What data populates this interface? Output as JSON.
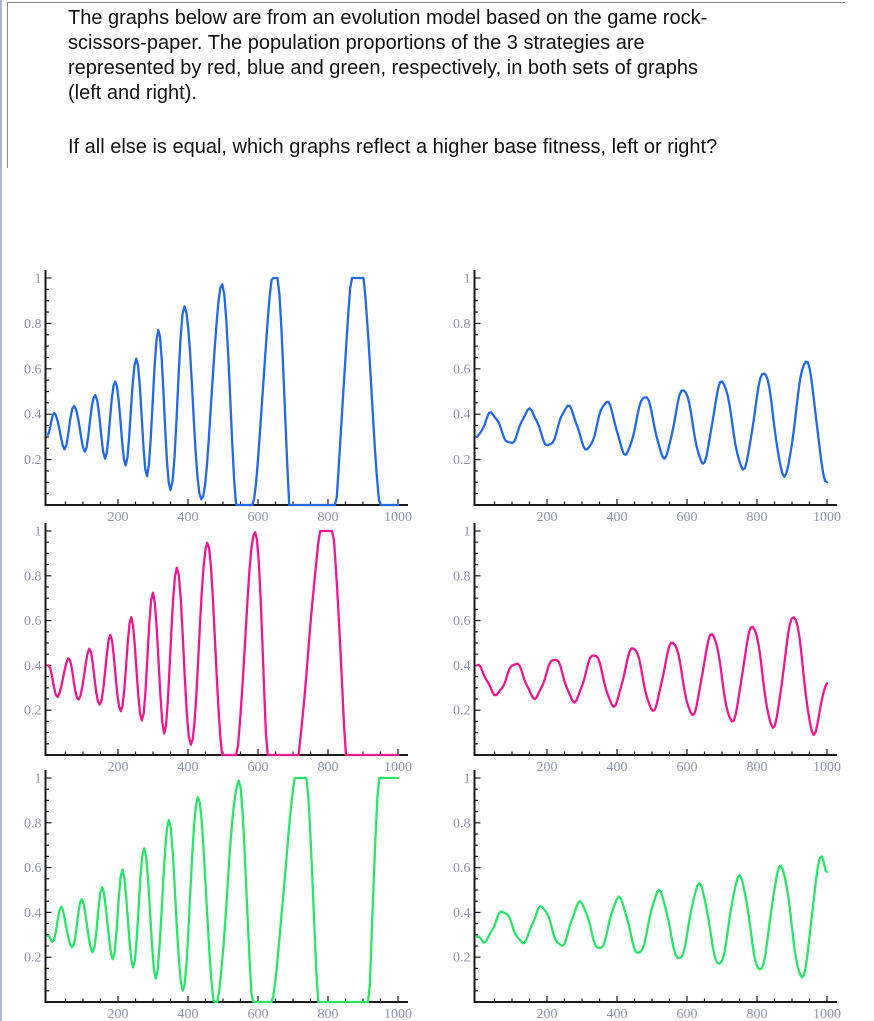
{
  "page": {
    "background": "#ffffff",
    "left_edge_color": "#aab8d8",
    "frame_border_color": "#8c8c8c",
    "text_color": "#111111"
  },
  "question": {
    "lines": [
      "The graphs below are from an evolution model based on the game rock-",
      "scissors-paper. The population proportions of the 3 strategies are",
      "represented by red, blue and green, respectively, in both sets of graphs",
      "(left and right).",
      "If all else is equal, which graphs reflect a higher base fitness, left or right?"
    ]
  },
  "charts": {
    "axis_color": "#1a1a1a",
    "tick_label_color": "#8e93ad",
    "x_tick_labels": [
      "200",
      "400",
      "600",
      "800",
      "1000"
    ],
    "y_tick_labels": [
      "0.2",
      "0.4",
      "0.6",
      "0.8",
      "1"
    ],
    "x_minor_step": 50,
    "y_minor_step": 0.05,
    "x_label_step": 200,
    "y_label_step": 0.2
  },
  "chart_data": [
    {
      "id": "blue-left",
      "type": "line",
      "series_name": "blue strategy proportion (left set, lower base fitness)",
      "color": "#2469e3",
      "x_range": [
        0,
        1000
      ],
      "y_range": [
        0,
        1
      ],
      "xlabel": "",
      "ylabel": "",
      "grid": false,
      "note": "Growing oscillation that saturates at 0 and 1; values outside [0,1] encode clipped plateaus",
      "points": [
        [
          0,
          0.31
        ],
        [
          18,
          0.41
        ],
        [
          47,
          0.25
        ],
        [
          75,
          0.44
        ],
        [
          105,
          0.24
        ],
        [
          135,
          0.49
        ],
        [
          163,
          0.21
        ],
        [
          192,
          0.55
        ],
        [
          222,
          0.18
        ],
        [
          252,
          0.65
        ],
        [
          283,
          0.13
        ],
        [
          315,
          0.77
        ],
        [
          350,
          0.06
        ],
        [
          390,
          0.88
        ],
        [
          438,
          0.02
        ],
        [
          498,
          0.97
        ],
        [
          543,
          -0.03
        ],
        [
          578,
          -0.03
        ],
        [
          650,
          1.05
        ],
        [
          706,
          -0.28
        ],
        [
          798,
          -0.28
        ],
        [
          885,
          1.16
        ],
        [
          962,
          -0.12
        ],
        [
          1000,
          -0.12
        ]
      ]
    },
    {
      "id": "blue-right",
      "type": "line",
      "series_name": "blue strategy proportion (right set, higher base fitness)",
      "color": "#2469e3",
      "x_range": [
        0,
        1000
      ],
      "y_range": [
        0,
        1
      ],
      "xlabel": "",
      "ylabel": "",
      "grid": false,
      "note": "Slowly growing bounded oscillation",
      "points": [
        [
          0,
          0.3
        ],
        [
          40,
          0.405
        ],
        [
          95,
          0.27
        ],
        [
          150,
          0.42
        ],
        [
          205,
          0.26
        ],
        [
          260,
          0.435
        ],
        [
          315,
          0.245
        ],
        [
          370,
          0.455
        ],
        [
          425,
          0.225
        ],
        [
          480,
          0.48
        ],
        [
          535,
          0.21
        ],
        [
          590,
          0.51
        ],
        [
          645,
          0.185
        ],
        [
          700,
          0.545
        ],
        [
          760,
          0.16
        ],
        [
          820,
          0.585
        ],
        [
          878,
          0.13
        ],
        [
          940,
          0.635
        ],
        [
          1000,
          0.1
        ]
      ]
    },
    {
      "id": "magenta-left",
      "type": "line",
      "series_name": "red strategy proportion (left set, lower base fitness)",
      "color": "#ed188f",
      "x_range": [
        0,
        1000
      ],
      "y_range": [
        0,
        1
      ],
      "xlabel": "",
      "ylabel": "",
      "grid": false,
      "note": "Growing oscillation that saturates at 0 and 1; values outside [0,1] encode clipped plateaus",
      "points": [
        [
          0,
          0.4
        ],
        [
          28,
          0.26
        ],
        [
          58,
          0.43
        ],
        [
          88,
          0.245
        ],
        [
          118,
          0.47
        ],
        [
          148,
          0.22
        ],
        [
          178,
          0.53
        ],
        [
          208,
          0.19
        ],
        [
          238,
          0.61
        ],
        [
          268,
          0.15
        ],
        [
          300,
          0.725
        ],
        [
          332,
          0.1
        ],
        [
          368,
          0.84
        ],
        [
          408,
          0.04
        ],
        [
          455,
          0.95
        ],
        [
          503,
          -0.04
        ],
        [
          532,
          -0.04
        ],
        [
          592,
          1.0
        ],
        [
          638,
          -0.2
        ],
        [
          688,
          -0.2
        ],
        [
          800,
          1.14
        ],
        [
          880,
          -0.5
        ],
        [
          1000,
          -0.5
        ]
      ]
    },
    {
      "id": "magenta-right",
      "type": "line",
      "series_name": "red strategy proportion (right set, higher base fitness)",
      "color": "#ed188f",
      "x_range": [
        0,
        1000
      ],
      "y_range": [
        0,
        1
      ],
      "xlabel": "",
      "ylabel": "",
      "grid": false,
      "note": "Slowly growing bounded oscillation",
      "points": [
        [
          0,
          0.4
        ],
        [
          55,
          0.27
        ],
        [
          110,
          0.41
        ],
        [
          165,
          0.255
        ],
        [
          222,
          0.43
        ],
        [
          278,
          0.24
        ],
        [
          335,
          0.45
        ],
        [
          390,
          0.22
        ],
        [
          447,
          0.48
        ],
        [
          502,
          0.2
        ],
        [
          560,
          0.505
        ],
        [
          615,
          0.18
        ],
        [
          672,
          0.54
        ],
        [
          728,
          0.15
        ],
        [
          788,
          0.575
        ],
        [
          845,
          0.125
        ],
        [
          905,
          0.62
        ],
        [
          962,
          0.095
        ],
        [
          1000,
          0.32
        ]
      ]
    },
    {
      "id": "green-left",
      "type": "line",
      "series_name": "green strategy proportion (left set, lower base fitness)",
      "color": "#2de46a",
      "x_range": [
        0,
        1000
      ],
      "y_range": [
        0,
        1
      ],
      "xlabel": "",
      "ylabel": "",
      "grid": false,
      "note": "Growing oscillation that saturates at 0 and 1; ends pinned at 1",
      "points": [
        [
          0,
          0.295
        ],
        [
          12,
          0.265
        ],
        [
          38,
          0.42
        ],
        [
          68,
          0.24
        ],
        [
          97,
          0.455
        ],
        [
          127,
          0.22
        ],
        [
          155,
          0.51
        ],
        [
          185,
          0.19
        ],
        [
          213,
          0.59
        ],
        [
          243,
          0.155
        ],
        [
          275,
          0.69
        ],
        [
          308,
          0.11
        ],
        [
          345,
          0.81
        ],
        [
          385,
          0.05
        ],
        [
          428,
          0.915
        ],
        [
          478,
          -0.02
        ],
        [
          545,
          0.985
        ],
        [
          592,
          -0.1
        ],
        [
          622,
          -0.1
        ],
        [
          727,
          1.14
        ],
        [
          795,
          -0.45
        ],
        [
          898,
          -0.45
        ],
        [
          952,
          1.06
        ],
        [
          1000,
          1.06
        ]
      ]
    },
    {
      "id": "green-right",
      "type": "line",
      "series_name": "green strategy proportion (right set, higher base fitness)",
      "color": "#2de46a",
      "x_range": [
        0,
        1000
      ],
      "y_range": [
        0,
        1
      ],
      "xlabel": "",
      "ylabel": "",
      "grid": false,
      "note": "Slowly growing bounded oscillation",
      "points": [
        [
          0,
          0.29
        ],
        [
          20,
          0.27
        ],
        [
          75,
          0.405
        ],
        [
          130,
          0.265
        ],
        [
          185,
          0.425
        ],
        [
          240,
          0.25
        ],
        [
          295,
          0.445
        ],
        [
          350,
          0.235
        ],
        [
          405,
          0.465
        ],
        [
          462,
          0.215
        ],
        [
          520,
          0.495
        ],
        [
          578,
          0.19
        ],
        [
          635,
          0.525
        ],
        [
          692,
          0.165
        ],
        [
          750,
          0.56
        ],
        [
          808,
          0.14
        ],
        [
          868,
          0.605
        ],
        [
          928,
          0.11
        ],
        [
          985,
          0.65
        ],
        [
          1000,
          0.58
        ]
      ]
    }
  ]
}
